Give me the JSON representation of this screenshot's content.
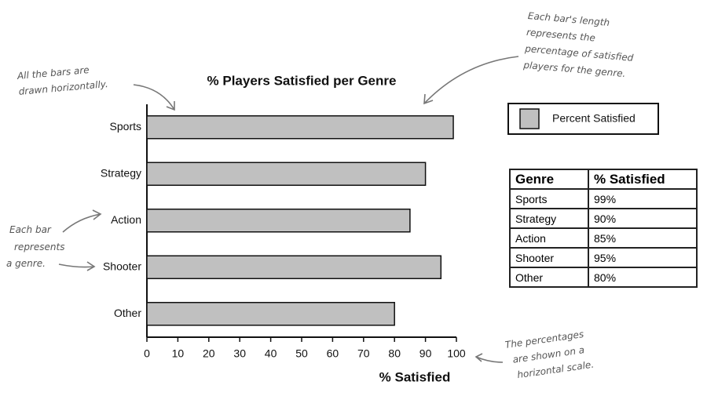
{
  "chart_data": {
    "type": "hbar",
    "title": "% Players Satisfied per Genre",
    "categories": [
      "Sports",
      "Strategy",
      "Action",
      "Shooter",
      "Other"
    ],
    "series": [
      {
        "name": "Percent Satisfied",
        "color": "#c0c0c0",
        "values": [
          99,
          90,
          85,
          95,
          80
        ]
      }
    ],
    "xlim": [
      0,
      100
    ],
    "xticks": [
      0,
      10,
      20,
      30,
      40,
      50,
      60,
      70,
      80,
      90,
      100
    ],
    "xlabel": "% Satisfied",
    "legend": "top-right"
  },
  "table": {
    "headers": [
      "Genre",
      "% Satisfied"
    ],
    "rows": [
      [
        "Sports",
        "99%"
      ],
      [
        "Strategy",
        "90%"
      ],
      [
        "Action",
        "85%"
      ],
      [
        "Shooter",
        "95%"
      ],
      [
        "Other",
        "80%"
      ]
    ]
  },
  "annotations": [
    {
      "lines": [
        "All the bars are",
        "drawn horizontally."
      ]
    },
    {
      "lines": [
        "Each bar's length",
        "represents the",
        "percentage of satisfied",
        "players for the genre."
      ]
    },
    {
      "lines": [
        "Each bar",
        "represents",
        "a genre."
      ]
    },
    {
      "lines": [
        "The percentages",
        "are shown on a",
        "horizontal scale."
      ]
    }
  ]
}
